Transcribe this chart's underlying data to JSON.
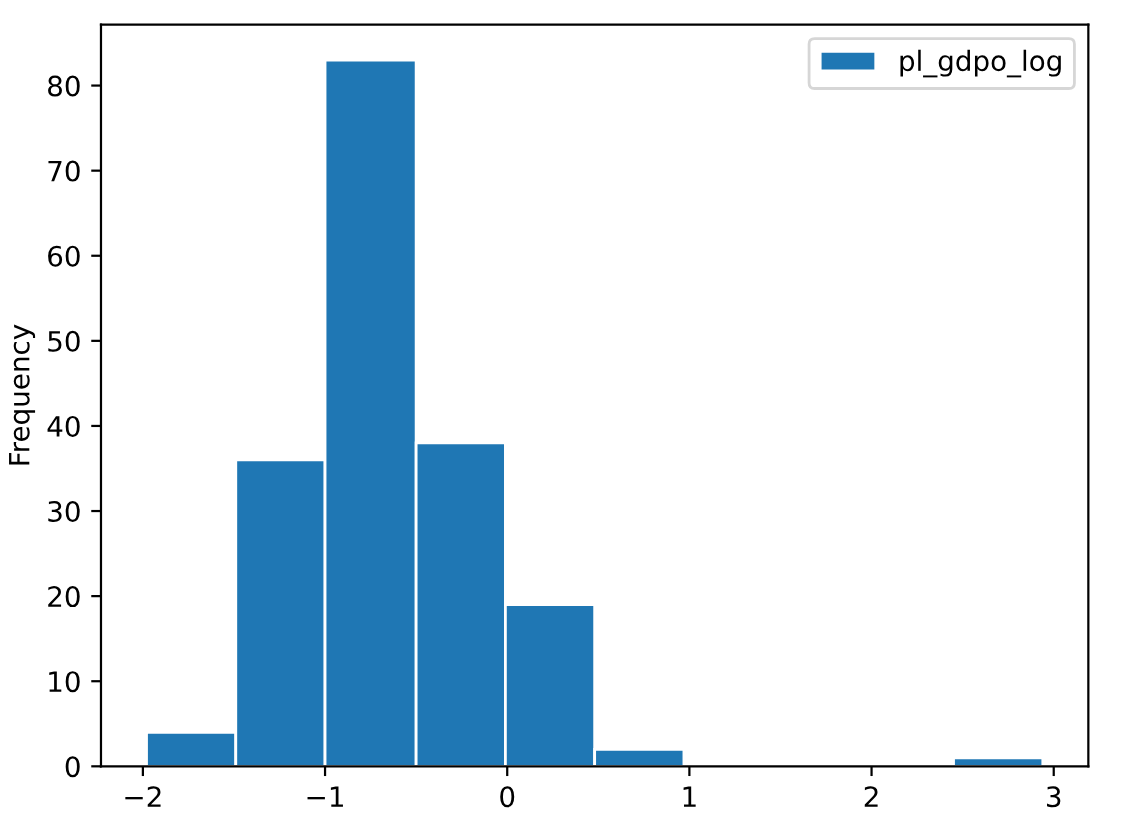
{
  "chart_data": {
    "type": "histogram",
    "ylabel": "Frequency",
    "bins": [
      -1.98,
      -1.49,
      -1.0,
      -0.5,
      -0.01,
      0.48,
      0.97,
      2.45,
      2.94
    ],
    "series": [
      {
        "name": "pl_gdpo_log",
        "color": "#1f77b4",
        "values": [
          4,
          36,
          83,
          38,
          19,
          2,
          0,
          1
        ]
      }
    ],
    "xlim": [
      -2.23,
      3.19
    ],
    "xticks": [
      {
        "value": -2,
        "label": "−2"
      },
      {
        "value": -1,
        "label": "−1"
      },
      0,
      1,
      2,
      3
    ],
    "ylim": [
      0,
      87.15
    ],
    "yticks": [
      0,
      10,
      20,
      30,
      40,
      50,
      60,
      70,
      80
    ],
    "grid": false,
    "legend": "top right"
  }
}
